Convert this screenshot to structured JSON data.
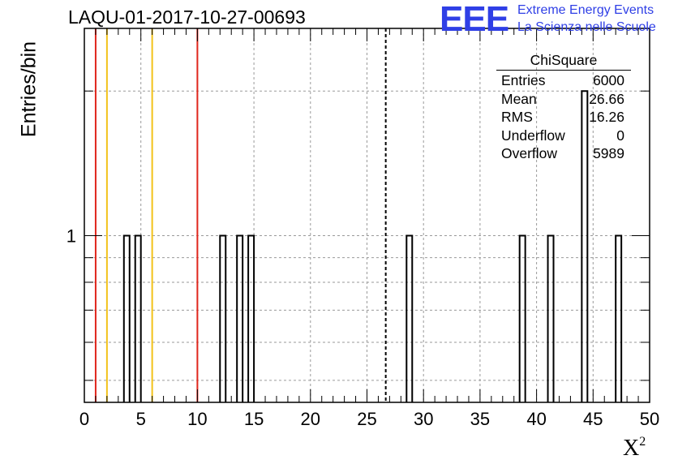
{
  "header": {
    "title": "LAQU-01-2017-10-27-00693",
    "logo_text": "EEE",
    "logo_line1": "Extreme Energy Events",
    "logo_line2": "La Scienza nelle Scuole"
  },
  "stats_box": {
    "title": "ChiSquare",
    "rows": [
      {
        "label": "Entries",
        "value": "6000"
      },
      {
        "label": "Mean",
        "value": "26.66"
      },
      {
        "label": "RMS",
        "value": "16.26"
      },
      {
        "label": "Underflow",
        "value": "0"
      },
      {
        "label": "Overflow",
        "value": "5989"
      }
    ]
  },
  "colors": {
    "red_line": "#e0261c",
    "yellow_line": "#f2c21a",
    "logo": "#2f3fe6"
  },
  "chart_data": {
    "type": "bar",
    "title": "LAQU-01-2017-10-27-00693",
    "xlabel": "X",
    "xlabel_sup": "2",
    "ylabel": "Entries/bin",
    "xlim": [
      0,
      50
    ],
    "ylim": [
      0.45,
      2.7
    ],
    "yscale": "log",
    "grid": true,
    "bin_width": 0.5,
    "bins": [
      {
        "x": 3.5,
        "count": 1
      },
      {
        "x": 4.5,
        "count": 1
      },
      {
        "x": 12.0,
        "count": 1
      },
      {
        "x": 13.5,
        "count": 1
      },
      {
        "x": 14.5,
        "count": 1
      },
      {
        "x": 28.5,
        "count": 1
      },
      {
        "x": 38.5,
        "count": 1
      },
      {
        "x": 41.0,
        "count": 1
      },
      {
        "x": 44.0,
        "count": 2
      },
      {
        "x": 47.0,
        "count": 1
      }
    ],
    "vlines": [
      {
        "x": 1,
        "color": "red"
      },
      {
        "x": 2,
        "color": "yellow"
      },
      {
        "x": 6,
        "color": "yellow"
      },
      {
        "x": 10,
        "color": "red"
      },
      {
        "x": 26.66,
        "color": "black",
        "style": "dashed"
      }
    ],
    "xticks": [
      "0",
      "5",
      "10",
      "15",
      "20",
      "25",
      "30",
      "35",
      "40",
      "45",
      "50"
    ],
    "yticks": [
      {
        "value": 1,
        "label": "1"
      }
    ]
  }
}
